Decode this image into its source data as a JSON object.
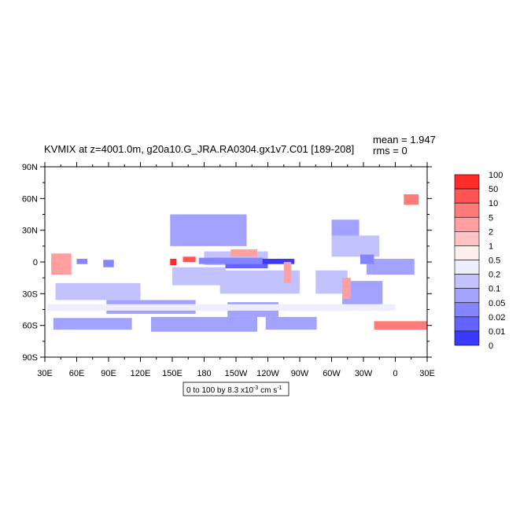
{
  "chart_data": {
    "type": "heatmap",
    "title": "KVMIX at z=4001.0m, g20a10.G_JRA.RA0304.gx1v7.C01 [189-208]",
    "stats": {
      "mean": "mean = 1.947",
      "rms": "rms = 0"
    },
    "x_tick_labels": [
      "30E",
      "60E",
      "90E",
      "120E",
      "150E",
      "180",
      "150W",
      "120W",
      "90W",
      "60W",
      "30W",
      "0",
      "30E"
    ],
    "y_tick_labels": [
      "90N",
      "60N",
      "30N",
      "0",
      "30S",
      "60S",
      "90S"
    ],
    "x_range_deg_east": [
      30,
      390
    ],
    "y_range_deg_north": [
      -90,
      90
    ],
    "contour_note": {
      "prefix": "0 to 100 by 8.3 x10",
      "exponent": "-3",
      "units": " cm s",
      "units_exponent": "-1"
    },
    "colorbar": {
      "labels": [
        "100",
        "50",
        "10",
        "5",
        "2",
        "1",
        "0.5",
        "0.2",
        "0.1",
        "0.05",
        "0.02",
        "0.01",
        "0"
      ],
      "colors": [
        "#ff2a2a",
        "#ff5555",
        "#ff7b7b",
        "#ff9f9f",
        "#ffc4c4",
        "#fff0f0",
        "#eeeeff",
        "#c2c2ff",
        "#a3a3ff",
        "#8585ff",
        "#6363ff",
        "#3a3aff"
      ]
    },
    "field_regions": [
      {
        "lon": [
          88,
          172
        ],
        "lat": [
          -49,
          -36
        ],
        "level": "0.1"
      },
      {
        "lon": [
          202,
          250
        ],
        "lat": [
          -52,
          -38
        ],
        "level": "0.1"
      },
      {
        "lon": [
          38,
          112
        ],
        "lat": [
          -64,
          -53
        ],
        "level": "0.1"
      },
      {
        "lon": [
          130,
          230
        ],
        "lat": [
          -66,
          -52
        ],
        "level": "0.1"
      },
      {
        "lon": [
          238,
          286
        ],
        "lat": [
          -64,
          -52
        ],
        "level": "0.1"
      },
      {
        "lon": [
          148,
          220
        ],
        "lat": [
          15,
          45
        ],
        "level": "0.1"
      },
      {
        "lon": [
          310,
          348
        ],
        "lat": [
          -40,
          -18
        ],
        "level": "0.1"
      },
      {
        "lon": [
          333,
          378
        ],
        "lat": [
          -12,
          3
        ],
        "level": "0.1"
      },
      {
        "lon": [
          300,
          326
        ],
        "lat": [
          24,
          40
        ],
        "level": "0.1"
      },
      {
        "lon": [
          40,
          120
        ],
        "lat": [
          -36,
          -20
        ],
        "level": "0.2"
      },
      {
        "lon": [
          195,
          270
        ],
        "lat": [
          -30,
          -8
        ],
        "level": "0.2"
      },
      {
        "lon": [
          150,
          200
        ],
        "lat": [
          -22,
          -5
        ],
        "level": "0.2"
      },
      {
        "lon": [
          180,
          240
        ],
        "lat": [
          -3,
          10
        ],
        "level": "0.2"
      },
      {
        "lon": [
          300,
          345
        ],
        "lat": [
          5,
          25
        ],
        "level": "0.2"
      },
      {
        "lon": [
          285,
          315
        ],
        "lat": [
          -30,
          -8
        ],
        "level": "0.2"
      },
      {
        "lon": [
          32,
          360
        ],
        "lat": [
          -46,
          -40
        ],
        "level": "0.5"
      },
      {
        "lon": [
          200,
          240
        ],
        "lat": [
          -6,
          3
        ],
        "level": "0.02"
      },
      {
        "lon": [
          230,
          265
        ],
        "lat": [
          -2,
          3
        ],
        "level": "0.01"
      },
      {
        "lon": [
          175,
          235
        ],
        "lat": [
          -2,
          4
        ],
        "level": "0.05"
      },
      {
        "lon": [
          327,
          340
        ],
        "lat": [
          -2,
          7
        ],
        "level": "0.05"
      },
      {
        "lon": [
          60,
          70
        ],
        "lat": [
          -2,
          3
        ],
        "level": "0.05"
      },
      {
        "lon": [
          85,
          95
        ],
        "lat": [
          -5,
          2
        ],
        "level": "0.05"
      },
      {
        "lon": [
          36,
          55
        ],
        "lat": [
          -12,
          8
        ],
        "level": "5"
      },
      {
        "lon": [
          148,
          154
        ],
        "lat": [
          -3,
          3
        ],
        "level": "100"
      },
      {
        "lon": [
          160,
          172
        ],
        "lat": [
          0,
          5
        ],
        "level": "50"
      },
      {
        "lon": [
          340,
          390
        ],
        "lat": [
          -64,
          -56
        ],
        "level": "10"
      },
      {
        "lon": [
          368,
          382
        ],
        "lat": [
          54,
          64
        ],
        "level": "10"
      },
      {
        "lon": [
          255,
          262
        ],
        "lat": [
          -20,
          0
        ],
        "level": "5"
      },
      {
        "lon": [
          310,
          318
        ],
        "lat": [
          -35,
          -15
        ],
        "level": "5"
      },
      {
        "lon": [
          205,
          230
        ],
        "lat": [
          5,
          12
        ],
        "level": "5"
      }
    ]
  }
}
